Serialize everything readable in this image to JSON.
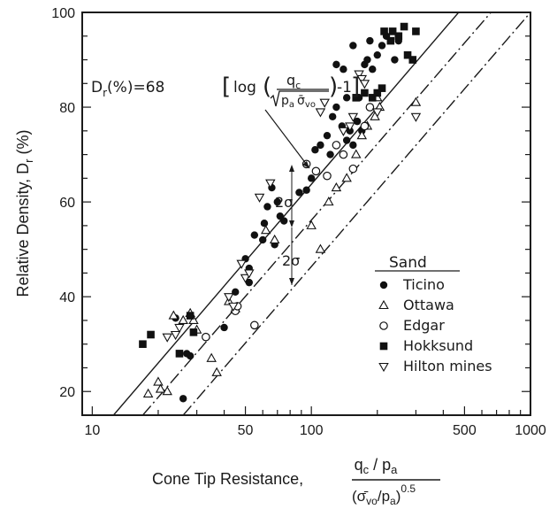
{
  "chart_data": {
    "type": "scatter",
    "x_scale": "log",
    "xlim": [
      9,
      1000
    ],
    "ylim": [
      15,
      100
    ],
    "x_ticks": [
      10,
      50,
      100,
      500,
      1000
    ],
    "y_ticks": [
      20,
      40,
      60,
      80,
      100
    ],
    "x_tick_labels": [
      "10",
      "50",
      "100",
      "500",
      "1000"
    ],
    "y_tick_labels": [
      "20",
      "40",
      "60",
      "80",
      "100"
    ],
    "ylabel_main": "Relative Density, D",
    "ylabel_sub": "r",
    "ylabel_unit": " (%)",
    "xlabel_prefix": "Cone Tip Resistance,",
    "xlabel_num": "q",
    "xlabel_num_sub": "c",
    "xlabel_num_rest": " / p",
    "xlabel_num_sub2": "a",
    "xlabel_den_open": "(",
    "xlabel_den_sigma": "σ̄",
    "xlabel_den_sub": "vo",
    "xlabel_den_rest": "/p",
    "xlabel_den_sub2": "a",
    "xlabel_den_close": ")",
    "xlabel_den_exp": "0.5",
    "equation": {
      "lhs": "D",
      "lhs_sub": "r",
      "lhs_rest": "(%)=68",
      "log": "log",
      "num": "q",
      "num_sub": "c",
      "den": "p",
      "den_sub1": "a",
      "den_sigma": "σ̄",
      "den_sub2": "vo",
      "tail": "-1"
    },
    "sigma_label": "2σ",
    "legend": {
      "title": "Sand",
      "position": "lower-right",
      "entries": [
        {
          "name": "Ticino",
          "marker": "filled-circle"
        },
        {
          "name": "Ottawa",
          "marker": "open-triangle-up"
        },
        {
          "name": "Edgar",
          "marker": "open-circle"
        },
        {
          "name": "Hokksund",
          "marker": "filled-square"
        },
        {
          "name": "Hilton mines",
          "marker": "open-triangle-down"
        }
      ]
    },
    "trend_lines": [
      {
        "role": "upper-bound",
        "style": "solid",
        "points": [
          [
            12.5,
            15
          ],
          [
            470,
            100
          ]
        ]
      },
      {
        "role": "mean",
        "style": "dash-dot",
        "points": [
          [
            17,
            15
          ],
          [
            660,
            100
          ]
        ]
      },
      {
        "role": "lower-bound",
        "style": "dash-dot",
        "points": [
          [
            26,
            15
          ],
          [
            1000,
            100
          ]
        ]
      }
    ],
    "series": [
      {
        "name": "Ticino",
        "marker": "filled-circle",
        "points": [
          [
            24,
            35.5
          ],
          [
            27,
            28
          ],
          [
            28,
            27.5
          ],
          [
            26,
            18.5
          ],
          [
            40,
            33.5
          ],
          [
            45,
            41
          ],
          [
            50,
            48
          ],
          [
            52,
            46
          ],
          [
            52,
            43
          ],
          [
            55,
            53
          ],
          [
            60,
            52
          ],
          [
            61,
            55.5
          ],
          [
            63,
            59
          ],
          [
            66,
            63
          ],
          [
            70,
            60
          ],
          [
            72,
            57
          ],
          [
            75,
            56
          ],
          [
            68,
            51
          ],
          [
            88,
            62
          ],
          [
            95,
            62.5
          ],
          [
            100,
            65
          ],
          [
            104,
            71
          ],
          [
            110,
            72
          ],
          [
            118,
            74
          ],
          [
            122,
            70
          ],
          [
            125,
            78
          ],
          [
            130,
            80
          ],
          [
            138,
            76
          ],
          [
            145,
            73
          ],
          [
            150,
            75
          ],
          [
            155,
            72
          ],
          [
            162,
            77
          ],
          [
            165,
            82
          ],
          [
            170,
            75
          ],
          [
            145,
            82
          ],
          [
            175,
            89
          ],
          [
            180,
            90
          ],
          [
            190,
            88
          ],
          [
            200,
            91
          ],
          [
            210,
            93
          ],
          [
            220,
            95
          ],
          [
            240,
            90
          ],
          [
            250,
            94
          ],
          [
            185,
            94
          ],
          [
            155,
            93
          ],
          [
            130,
            89
          ],
          [
            140,
            88
          ]
        ]
      },
      {
        "name": "Ottawa",
        "marker": "open-triangle-up",
        "points": [
          [
            18,
            19.5
          ],
          [
            20,
            22
          ],
          [
            20.5,
            20.5
          ],
          [
            22,
            20
          ],
          [
            23.5,
            36
          ],
          [
            26,
            35
          ],
          [
            28,
            36.5
          ],
          [
            29,
            35
          ],
          [
            30,
            33
          ],
          [
            35,
            27
          ],
          [
            37,
            24
          ],
          [
            42,
            39
          ],
          [
            45,
            37.5
          ],
          [
            62,
            54
          ],
          [
            68,
            52
          ],
          [
            100,
            55
          ],
          [
            110,
            50
          ],
          [
            120,
            60
          ],
          [
            130,
            63
          ],
          [
            145,
            65
          ],
          [
            160,
            70
          ],
          [
            170,
            74
          ],
          [
            180,
            76
          ],
          [
            195,
            78
          ],
          [
            205,
            80
          ],
          [
            200,
            82
          ],
          [
            300,
            81
          ]
        ]
      },
      {
        "name": "Edgar",
        "marker": "open-circle",
        "points": [
          [
            33,
            31.5
          ],
          [
            45,
            37
          ],
          [
            46,
            38
          ],
          [
            55,
            34
          ],
          [
            95,
            68
          ],
          [
            105,
            66.5
          ],
          [
            118,
            65.5
          ],
          [
            130,
            72
          ],
          [
            140,
            70
          ],
          [
            155,
            67
          ],
          [
            175,
            76
          ],
          [
            185,
            80
          ]
        ]
      },
      {
        "name": "Hokksund",
        "marker": "filled-square",
        "points": [
          [
            17,
            30
          ],
          [
            18.5,
            32
          ],
          [
            25,
            28
          ],
          [
            28,
            36
          ],
          [
            29,
            32.5
          ],
          [
            160,
            82
          ],
          [
            175,
            83
          ],
          [
            190,
            82
          ],
          [
            200,
            83
          ],
          [
            210,
            84
          ],
          [
            215,
            96
          ],
          [
            235,
            96
          ],
          [
            250,
            95
          ],
          [
            265,
            97
          ],
          [
            275,
            91
          ],
          [
            290,
            90
          ],
          [
            300,
            96
          ],
          [
            230,
            94
          ]
        ]
      },
      {
        "name": "Hilton mines",
        "marker": "open-triangle-down",
        "points": [
          [
            22,
            31.5
          ],
          [
            24,
            32
          ],
          [
            25,
            33.5
          ],
          [
            42,
            40
          ],
          [
            44,
            38
          ],
          [
            48,
            47
          ],
          [
            50,
            44
          ],
          [
            52,
            45
          ],
          [
            58,
            61
          ],
          [
            65,
            64
          ],
          [
            110,
            79
          ],
          [
            115,
            81
          ],
          [
            140,
            75
          ],
          [
            150,
            76
          ],
          [
            155,
            78
          ],
          [
            165,
            87
          ],
          [
            170,
            86
          ],
          [
            175,
            85
          ],
          [
            300,
            78
          ],
          [
            200,
            79
          ]
        ]
      }
    ]
  }
}
